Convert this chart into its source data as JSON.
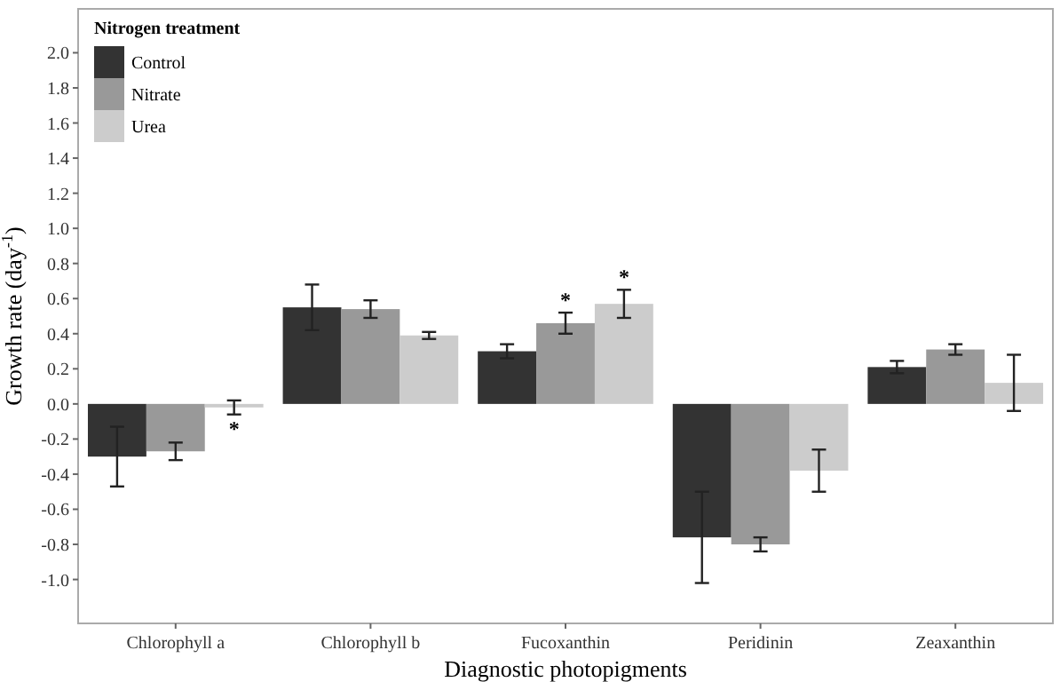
{
  "chart_data": {
    "type": "bar",
    "xlabel": "Diagnostic photopigments",
    "ylabel": "Growth rate (day$^{-1}$)",
    "legend_title": "Nitrogen treatment",
    "legend": "top left",
    "grid": false,
    "categories": [
      "Chlorophyll a",
      "Chlorophyll b",
      "Fucoxanthin",
      "Peridinin",
      "Zeaxanthin"
    ],
    "ylim": [
      -1.25,
      2.25
    ],
    "yticks": [
      {
        "value": -1,
        "label": "-1.0"
      },
      -0.8,
      -0.6,
      -0.4,
      -0.2,
      {
        "value": 0,
        "label": "0.0"
      },
      0.2,
      0.4,
      0.6,
      0.8,
      {
        "value": 1,
        "label": "1.0"
      },
      1.2,
      1.4,
      1.6,
      1.8,
      {
        "value": 2,
        "label": "2.0"
      }
    ],
    "series": [
      {
        "name": "Control",
        "color": "#333333",
        "values": [
          -0.3,
          0.55,
          0.3,
          -0.76,
          0.21
        ],
        "errors": [
          0.17,
          0.13,
          0.04,
          0.26,
          0.035
        ]
      },
      {
        "name": "Nitrate",
        "color": "#999999",
        "values": [
          -0.27,
          0.54,
          0.46,
          -0.8,
          0.31
        ],
        "errors": [
          0.05,
          0.05,
          0.06,
          0.04,
          0.03
        ]
      },
      {
        "name": "Urea",
        "color": "#cccccc",
        "values": [
          -0.02,
          0.39,
          0.57,
          -0.38,
          0.12
        ],
        "errors": [
          0.04,
          0.02,
          0.08,
          0.12,
          0.16
        ]
      }
    ],
    "annotations": [
      {
        "text": "*",
        "x": "Chlorophyll a",
        "y": -0.02
      },
      {
        "text": "*",
        "x": "Fucoxanthin",
        "y": 0.46
      },
      {
        "text": "*",
        "x": "Fucoxanthin",
        "y": 0.57
      }
    ]
  }
}
